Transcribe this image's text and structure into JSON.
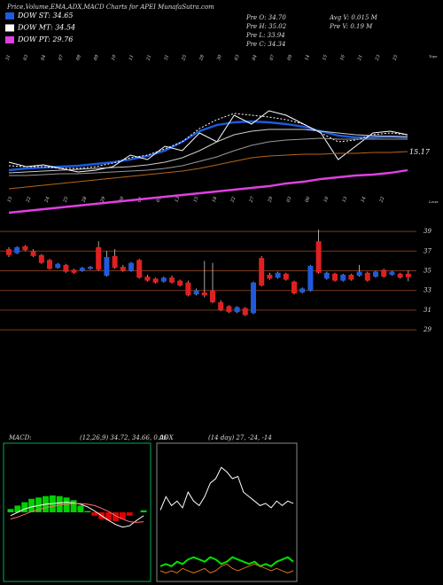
{
  "header": {
    "title": "Price,Volume,EMA,ADX,MACD Charts for APEI MunafaSutra.com",
    "legend": [
      {
        "label": "DOW ST: 34.65",
        "color": "#1e5adc"
      },
      {
        "label": "DOW MT: 34.54",
        "color": "#ffffff"
      },
      {
        "label": "DOW PT: 29.76",
        "color": "#e040e0"
      }
    ],
    "stats": [
      "Pre O: 34.70",
      "Pre H: 35.02",
      "Pre L: 33.94",
      "Pre C: 34.34",
      "Avg V: 0.015 M",
      "Pre V: 0.19 M"
    ]
  },
  "chart_data": [
    {
      "type": "line",
      "ylim": [
        0,
        85
      ],
      "annotation": "15.17",
      "tops_label": "Tops",
      "lows_label": "Lows",
      "top_dates": [
        "31",
        "03",
        "04",
        "07",
        "08",
        "09",
        "10",
        "11",
        "21",
        "31",
        "25",
        "28",
        "30",
        "03",
        "04",
        "07",
        "09",
        "14",
        "15",
        "16",
        "21",
        "23",
        "25"
      ],
      "low_dates": [
        "15",
        "22",
        "24",
        "25",
        "28",
        "29",
        "30",
        "01",
        "05",
        "13",
        "15",
        "18",
        "22",
        "27",
        "29",
        "03",
        "06",
        "10",
        "13",
        "14",
        "22"
      ],
      "series": [
        {
          "color": "#1e5adc",
          "values": [
            26.5,
            27.5,
            28,
            28.5,
            29,
            30,
            31,
            32.5,
            34.5,
            37.5,
            42.5,
            48.5,
            52,
            53.5,
            54,
            53.5,
            52.5,
            51,
            48.5,
            46,
            45,
            45,
            45.5,
            45
          ]
        },
        {
          "color": "#ffffff",
          "values": [
            31,
            28.5,
            29.5,
            27.5,
            25.5,
            26.5,
            28.5,
            35,
            32.5,
            40,
            37.5,
            47.5,
            42.5,
            57.5,
            52.5,
            60,
            57.5,
            52.5,
            47.5,
            32.5,
            40,
            47.5,
            48.5,
            46.5
          ]
        },
        {
          "color": "#ffffff",
          "style": "dotted",
          "values": [
            29,
            28.5,
            28.5,
            27.5,
            27.5,
            28.5,
            30.5,
            33.5,
            35,
            38.5,
            42.5,
            50,
            55,
            58.5,
            57.5,
            56.5,
            55,
            52.5,
            47.5,
            42.5,
            43.5,
            46.5,
            47.5,
            46.5
          ]
        },
        {
          "color": "#cccccc",
          "values": [
            25,
            25.5,
            26,
            26.5,
            27,
            27.5,
            28,
            28.5,
            29.5,
            31,
            33.5,
            37.5,
            42.5,
            46.5,
            48.5,
            49.5,
            49.5,
            49.5,
            48.5,
            47.5,
            46.5,
            46,
            45.5,
            45.5
          ]
        },
        {
          "color": "#999999",
          "values": [
            23.5,
            23.5,
            24,
            24.5,
            24.5,
            25,
            25.5,
            26,
            26.5,
            27.5,
            29,
            31.5,
            34,
            37.5,
            40.5,
            42.5,
            43.5,
            44,
            44.5,
            44,
            44,
            44,
            44,
            44
          ]
        },
        {
          "color": "#b8651b",
          "values": [
            16,
            17,
            18,
            19,
            20,
            21,
            22,
            23,
            24,
            25,
            26,
            27.5,
            29.5,
            31.5,
            33.5,
            34.5,
            35,
            35.5,
            35.5,
            36,
            36,
            36.5,
            36.5,
            37
          ]
        },
        {
          "color": "#e040e0",
          "values": [
            2.5,
            3.5,
            4.5,
            5.5,
            6.5,
            7.5,
            8.5,
            9.5,
            10.5,
            11.5,
            12.5,
            13.5,
            14.5,
            15.5,
            16.5,
            17.5,
            19,
            20,
            21.5,
            22.5,
            23.5,
            24,
            25,
            26.5
          ]
        }
      ]
    },
    {
      "type": "candlestick",
      "ylim": [
        28,
        40
      ],
      "yticks": [
        39,
        37,
        35,
        33,
        31,
        29
      ],
      "grid": true,
      "grid_color": "#7a3a1a",
      "up_color": "#1e5adc",
      "down_color": "#e02020",
      "open": [
        37.2,
        36.8,
        37.5,
        37.0,
        36.6,
        36.1,
        35.3,
        35.6,
        35.1,
        35.0,
        35.2,
        37.4,
        34.5,
        36.5,
        35.4,
        35.0,
        36.1,
        34.4,
        34.2,
        33.9,
        34.3,
        34.0,
        33.8,
        32.6,
        32.8,
        33.0,
        31.8,
        31.4,
        30.8,
        31.2,
        30.7,
        36.3,
        34.6,
        34.3,
        34.7,
        33.9,
        32.8,
        33.0,
        38.0,
        34.2,
        34.7,
        34.0,
        34.6,
        34.5,
        34.8,
        34.4,
        35.1,
        34.6,
        34.7,
        34.7
      ],
      "high": [
        37.4,
        37.5,
        37.6,
        37.2,
        36.7,
        36.2,
        35.8,
        35.7,
        35.2,
        35.4,
        35.5,
        38.0,
        37.0,
        37.2,
        35.6,
        35.9,
        36.2,
        34.6,
        34.3,
        34.4,
        34.5,
        34.1,
        34.0,
        33.2,
        36.0,
        35.8,
        32.0,
        31.5,
        31.4,
        31.3,
        33.9,
        36.5,
        34.8,
        34.9,
        34.8,
        34.0,
        33.3,
        35.6,
        39.2,
        34.9,
        34.8,
        34.7,
        34.7,
        35.6,
        34.9,
        35.0,
        35.2,
        35.0,
        34.8,
        35.02
      ],
      "low": [
        36.4,
        36.7,
        37.0,
        36.4,
        35.7,
        35.1,
        35.2,
        34.8,
        34.7,
        34.9,
        35.1,
        35.0,
        34.4,
        35.2,
        34.9,
        34.9,
        34.2,
        33.9,
        33.7,
        33.8,
        33.7,
        33.4,
        32.4,
        32.5,
        32.3,
        31.7,
        30.9,
        30.7,
        30.7,
        30.4,
        30.6,
        33.4,
        34.1,
        34.2,
        34.0,
        32.6,
        32.7,
        32.9,
        34.7,
        34.1,
        33.9,
        33.9,
        34.0,
        34.4,
        33.9,
        34.3,
        34.3,
        34.5,
        34.2,
        33.94
      ],
      "close": [
        36.6,
        37.4,
        37.1,
        36.5,
        35.8,
        35.2,
        35.7,
        34.9,
        34.8,
        35.3,
        35.4,
        35.1,
        36.4,
        35.3,
        35.0,
        35.8,
        34.3,
        34.0,
        33.8,
        34.3,
        33.8,
        33.5,
        32.5,
        33.0,
        32.5,
        31.8,
        31.0,
        30.8,
        31.3,
        30.5,
        33.8,
        33.5,
        34.2,
        34.8,
        34.1,
        32.7,
        33.2,
        35.5,
        34.8,
        34.8,
        34.0,
        34.6,
        34.1,
        34.9,
        34.0,
        34.9,
        34.4,
        34.9,
        34.3,
        34.34
      ]
    },
    {
      "type": "macd",
      "title": "MACD:",
      "subtitle": "(12,26,9) 34.72, 34.66, 0.06",
      "ylim": [
        -1,
        1
      ],
      "series": [
        {
          "color": "#ffffff",
          "values": [
            -0.05,
            0.0,
            0.05,
            0.08,
            0.1,
            0.12,
            0.13,
            0.14,
            0.15,
            0.14,
            0.12,
            0.08,
            0.02,
            -0.05,
            -0.12,
            -0.18,
            -0.22,
            -0.2,
            -0.12,
            -0.05
          ]
        },
        {
          "color": "#ff7070",
          "values": [
            -0.1,
            -0.07,
            -0.03,
            0.01,
            0.04,
            0.07,
            0.09,
            0.11,
            0.12,
            0.13,
            0.13,
            0.12,
            0.1,
            0.06,
            0.01,
            -0.05,
            -0.1,
            -0.14,
            -0.15,
            -0.14
          ]
        }
      ],
      "histogram": {
        "up_color": "#00d000",
        "down_color": "#e00000",
        "values": [
          0.05,
          0.1,
          0.15,
          0.2,
          0.22,
          0.24,
          0.25,
          0.24,
          0.22,
          0.18,
          0.1,
          0.02,
          -0.05,
          -0.1,
          -0.12,
          -0.13,
          -0.1,
          -0.05,
          0,
          0.03
        ]
      }
    },
    {
      "type": "adx",
      "title": "ADX",
      "subtitle": "(14 day) 27, -24, -14",
      "ylim": [
        0,
        60
      ],
      "series": [
        {
          "color": "#ffffff",
          "values": [
            31,
            37,
            33,
            35,
            32,
            39,
            35,
            33,
            37,
            43,
            45,
            50,
            48,
            45,
            46,
            39,
            37,
            35,
            33,
            34,
            32,
            35,
            33,
            35,
            34
          ]
        },
        {
          "color": "#00e000",
          "values": [
            6,
            7,
            6,
            8,
            7,
            9,
            10,
            9,
            8,
            10,
            9,
            7,
            8,
            10,
            9,
            8,
            7,
            8,
            6,
            7,
            6,
            8,
            9,
            10,
            8
          ]
        },
        {
          "color": "#d07020",
          "values": [
            4,
            3,
            4,
            3,
            5,
            4,
            3,
            4,
            5,
            3,
            4,
            6,
            7,
            5,
            4,
            5,
            6,
            7,
            6,
            5,
            4,
            5,
            4,
            3,
            4
          ]
        }
      ]
    }
  ]
}
